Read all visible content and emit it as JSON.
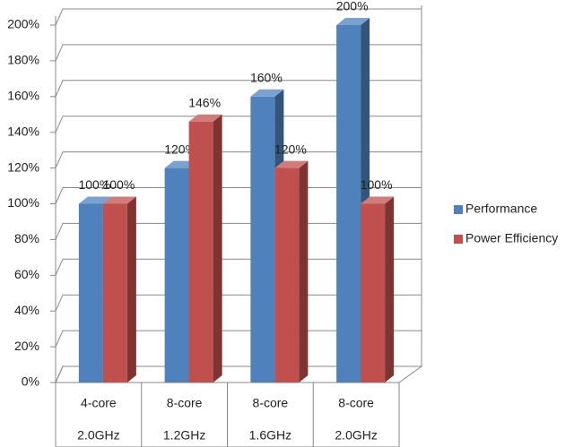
{
  "chart_data": {
    "type": "bar3d",
    "categories": [
      [
        "4-core",
        "2.0GHz"
      ],
      [
        "8-core",
        "1.2GHz"
      ],
      [
        "8-core",
        "1.6GHz"
      ],
      [
        "8-core",
        "2.0GHz"
      ]
    ],
    "series": [
      {
        "name": "Performance",
        "color": "#4f81bd",
        "values": [
          100,
          120,
          160,
          200
        ],
        "value_labels": [
          "100%",
          "120%",
          "160%",
          "200%"
        ]
      },
      {
        "name": "Power Efficiency",
        "color": "#c0504d",
        "values": [
          100,
          146,
          120,
          100
        ],
        "value_labels": [
          "100%",
          "146%",
          "120%",
          "100%"
        ]
      }
    ],
    "ylim": [
      0,
      200
    ],
    "yticks": [
      {
        "value": 0,
        "label": "0%"
      },
      {
        "value": 20,
        "label": "20%"
      },
      {
        "value": 40,
        "label": "40%"
      },
      {
        "value": 60,
        "label": "60%"
      },
      {
        "value": 80,
        "label": "80%"
      },
      {
        "value": 100,
        "label": "100%"
      },
      {
        "value": 120,
        "label": "120%"
      },
      {
        "value": 140,
        "label": "140%"
      },
      {
        "value": 160,
        "label": "160%"
      },
      {
        "value": 180,
        "label": "180%"
      },
      {
        "value": 200,
        "label": "200%"
      }
    ],
    "grid": true,
    "legend": "right"
  }
}
